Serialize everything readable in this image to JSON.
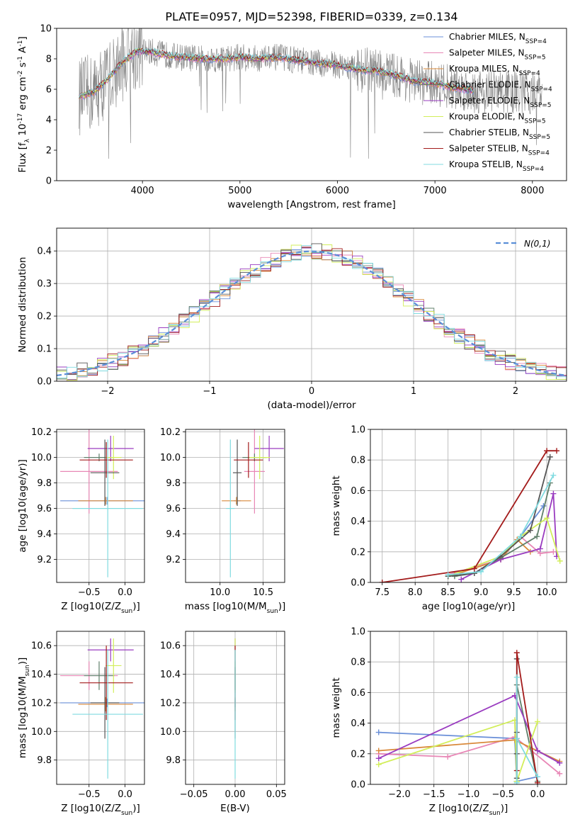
{
  "figure": {
    "title": "PLATE=0957, MJD=52398, FIBERID=0339, z=0.134"
  },
  "colors": {
    "series": [
      "#6a8fd8",
      "#e887b6",
      "#d9893a",
      "#5f7f6a",
      "#9a3cc0",
      "#d2ee5a",
      "#555555",
      "#a31b1b",
      "#80dbe0"
    ],
    "data": "#808080",
    "gauss": "#5b8fd8",
    "grid": "#b0b0b0"
  },
  "series_names": [
    "Chabrier MILES, N_SSP=4",
    "Salpeter MILES, N_SSP=5",
    "Kroupa MILES, N_SSP=4",
    "Chabrier ELODIE, N_SSP=4",
    "Salpeter ELODIE, N_SSP=5",
    "Kroupa ELODIE, N_SSP=5",
    "Chabrier STELIB, N_SSP=5",
    "Salpeter STELIB, N_SSP=4",
    "Kroupa STELIB, N_SSP=4"
  ],
  "chart_data": [
    {
      "id": "spectrum",
      "type": "line",
      "xlabel": "wavelength [Angstrom, rest frame]",
      "ylabel": "Flux [f_λ 10^-17 erg cm^-2 s^-1 A^-1]",
      "xlim": [
        3120,
        8350
      ],
      "ylim": [
        0,
        10
      ],
      "xticks": [
        4000,
        5000,
        6000,
        7000,
        8000
      ],
      "yticks": [
        0,
        2,
        4,
        6,
        8,
        10
      ],
      "grid": false,
      "legend": "right",
      "continuum": {
        "x": [
          3350,
          3500,
          3650,
          3800,
          3950,
          4050,
          4200,
          4400,
          4600,
          4800,
          5000,
          5200,
          5400,
          5600,
          5800,
          6000,
          6200,
          6400,
          6600,
          6800,
          7000,
          7200,
          7400
        ],
        "y": [
          5.5,
          5.8,
          6.7,
          7.8,
          8.5,
          8.5,
          8.3,
          8.1,
          8.0,
          8.0,
          8.1,
          8.0,
          8.1,
          7.9,
          7.7,
          7.6,
          7.3,
          7.2,
          6.9,
          6.5,
          6.4,
          6.1,
          5.9
        ]
      },
      "data_xrange": [
        3350,
        8100
      ],
      "model_xrange": [
        3350,
        7400
      ]
    },
    {
      "id": "residual-hist",
      "type": "histogram",
      "xlabel": "(data-model)/error",
      "ylabel": "Normed distribution",
      "xlim": [
        -2.5,
        2.5
      ],
      "ylim": [
        0,
        0.47
      ],
      "xticks": [
        -2,
        -1,
        0,
        1,
        2
      ],
      "xticklabels": [
        "−2",
        "−1",
        "0",
        "1",
        "2"
      ],
      "yticks": [
        0,
        0.1,
        0.2,
        0.3,
        0.4
      ],
      "yticklabels": [
        "0.0",
        "0.1",
        "0.2",
        "0.3",
        "0.4"
      ],
      "grid": true,
      "legend": "top-right",
      "gauss_label": "N(0,1)",
      "bin_width": 0.1
    },
    {
      "id": "age-vs-Z",
      "type": "scatter",
      "xlabel": "Z [log10(Z/Z_sun)]",
      "ylabel": "age [log10(age/yr)]",
      "xlim": [
        -0.95,
        0.27
      ],
      "ylim": [
        9.02,
        10.22
      ],
      "xticks": [
        -0.5,
        0.0
      ],
      "xticklabels": [
        "−0.5",
        "0.0"
      ],
      "yticks": [
        9.2,
        9.4,
        9.6,
        9.8,
        10.0,
        10.2
      ],
      "yticklabels": [
        "9.2",
        "9.4",
        "9.6",
        "9.8",
        "10.0",
        "10.2"
      ],
      "grid": true,
      "points": [
        {
          "x": -0.25,
          "xerr": 0.65,
          "y": 9.66,
          "yerr": 0.03
        },
        {
          "x": -0.5,
          "xerr": 0.4,
          "y": 9.89,
          "yerr": 0.33
        },
        {
          "x": -0.27,
          "xerr": 0.38,
          "y": 9.66,
          "yerr": 0.03
        },
        {
          "x": -0.36,
          "xerr": 0.21,
          "y": 10.0,
          "yerr": 0.03
        },
        {
          "x": -0.2,
          "xerr": 0.32,
          "y": 10.07,
          "yerr": 0.1
        },
        {
          "x": -0.16,
          "xerr": 0.11,
          "y": 10.0,
          "yerr": 0.17
        },
        {
          "x": -0.28,
          "xerr": 0.2,
          "y": 9.88,
          "yerr": 0.26
        },
        {
          "x": -0.26,
          "xerr": 0.37,
          "y": 9.98,
          "yerr": 0.14
        },
        {
          "x": -0.24,
          "xerr": 0.49,
          "y": 9.6,
          "yerr": 0.54
        }
      ]
    },
    {
      "id": "age-vs-mass",
      "type": "scatter",
      "xlabel": "mass [log10(M/M_sun)]",
      "ylabel": "",
      "xlim": [
        9.6,
        10.75
      ],
      "ylim": [
        9.02,
        10.22
      ],
      "xticks": [
        10.0,
        10.5
      ],
      "xticklabels": [
        "10.0",
        "10.5"
      ],
      "yticks": [
        9.2,
        9.4,
        9.6,
        9.8,
        10.0,
        10.2
      ],
      "yticklabels": [
        "9.2",
        "9.4",
        "9.6",
        "9.8",
        "10.0",
        "10.2"
      ],
      "grid": true,
      "points": [
        {
          "x": 10.2,
          "xerr": 0.04,
          "y": 9.66,
          "yerr": 0.03
        },
        {
          "x": 10.4,
          "xerr": 0.12,
          "y": 9.89,
          "yerr": 0.33
        },
        {
          "x": 10.19,
          "xerr": 0.17,
          "y": 9.66,
          "yerr": 0.03
        },
        {
          "x": 10.4,
          "xerr": 0.14,
          "y": 10.0,
          "yerr": 0.03
        },
        {
          "x": 10.57,
          "xerr": 0.17,
          "y": 10.07,
          "yerr": 0.1
        },
        {
          "x": 10.46,
          "xerr": 0.12,
          "y": 10.0,
          "yerr": 0.17
        },
        {
          "x": 10.2,
          "xerr": 0.05,
          "y": 9.88,
          "yerr": 0.26
        },
        {
          "x": 10.33,
          "xerr": 0.17,
          "y": 9.98,
          "yerr": 0.14
        },
        {
          "x": 10.12,
          "xerr": 0.05,
          "y": 9.6,
          "yerr": 0.54
        }
      ]
    },
    {
      "id": "massweight-vs-age",
      "type": "line",
      "xlabel": "age [log10(age/yr)]",
      "ylabel": "mass weight",
      "xlim": [
        7.32,
        10.3
      ],
      "ylim": [
        0,
        1
      ],
      "xticks": [
        7.5,
        8.0,
        8.5,
        9.0,
        9.5,
        10.0
      ],
      "xticklabels": [
        "7.5",
        "8.0",
        "8.5",
        "9.0",
        "9.5",
        "10.0"
      ],
      "yticks": [
        0,
        0.2,
        0.4,
        0.6,
        0.8,
        1.0
      ],
      "yticklabels": [
        "0.0",
        "0.2",
        "0.4",
        "0.6",
        "0.8",
        "1.0"
      ],
      "grid": true,
      "series_x": [
        [
          8.5,
          9.3,
          9.6,
          9.95
        ],
        [
          8.5,
          9.3,
          9.6,
          9.9,
          10.1
        ],
        [
          8.6,
          9.3,
          9.55,
          9.75
        ],
        [
          8.6,
          8.9,
          9.3,
          9.85,
          10.05
        ],
        [
          8.7,
          9.3,
          9.9,
          10.1,
          10.15
        ],
        [
          8.5,
          9.3,
          9.6,
          10.0,
          10.2
        ],
        [
          8.5,
          8.9,
          9.3,
          9.75,
          10.05
        ],
        [
          7.5,
          8.9,
          10.0,
          10.15
        ],
        [
          8.5,
          9.0,
          9.6,
          10.1
        ]
      ],
      "series_y": [
        [
          0.05,
          0.15,
          0.3,
          0.5
        ],
        [
          0.05,
          0.15,
          0.3,
          0.19,
          0.2
        ],
        [
          0.05,
          0.15,
          0.28,
          0.2
        ],
        [
          0.04,
          0.06,
          0.16,
          0.3,
          0.65
        ],
        [
          0.02,
          0.15,
          0.22,
          0.58,
          0.17
        ],
        [
          0.04,
          0.17,
          0.3,
          0.42,
          0.14
        ],
        [
          0.04,
          0.06,
          0.17,
          0.34,
          0.82
        ],
        [
          0.0,
          0.09,
          0.86,
          0.86
        ],
        [
          0.05,
          0.07,
          0.3,
          0.7
        ]
      ]
    },
    {
      "id": "mass-vs-Z",
      "type": "scatter",
      "xlabel": "Z [log10(Z/Z_sun)]",
      "ylabel": "mass [log10(M/M_sun)]",
      "xlim": [
        -0.95,
        0.27
      ],
      "ylim": [
        9.63,
        10.7
      ],
      "xticks": [
        -0.5,
        0.0
      ],
      "xticklabels": [
        "−0.5",
        "0.0"
      ],
      "yticks": [
        9.8,
        10.0,
        10.2,
        10.4,
        10.6
      ],
      "yticklabels": [
        "9.8",
        "10.0",
        "10.2",
        "10.4",
        "10.6"
      ],
      "grid": true,
      "points": [
        {
          "x": -0.25,
          "xerr": 0.65,
          "y": 10.2,
          "yerr": 0.03
        },
        {
          "x": -0.5,
          "xerr": 0.4,
          "y": 10.39,
          "yerr": 0.1
        },
        {
          "x": -0.27,
          "xerr": 0.38,
          "y": 10.19,
          "yerr": 0.05
        },
        {
          "x": -0.36,
          "xerr": 0.21,
          "y": 10.39,
          "yerr": 0.1
        },
        {
          "x": -0.2,
          "xerr": 0.32,
          "y": 10.57,
          "yerr": 0.08
        },
        {
          "x": -0.16,
          "xerr": 0.11,
          "y": 10.46,
          "yerr": 0.19
        },
        {
          "x": -0.28,
          "xerr": 0.2,
          "y": 10.2,
          "yerr": 0.25
        },
        {
          "x": -0.26,
          "xerr": 0.37,
          "y": 10.34,
          "yerr": 0.26
        },
        {
          "x": -0.24,
          "xerr": 0.49,
          "y": 10.12,
          "yerr": 0.45
        }
      ]
    },
    {
      "id": "mass-vs-ebv",
      "type": "scatter",
      "xlabel": "E(B-V)",
      "ylabel": "",
      "xlim": [
        -0.06,
        0.06
      ],
      "ylim": [
        9.63,
        10.7
      ],
      "xticks": [
        -0.05,
        0.0,
        0.05
      ],
      "xticklabels": [
        "−0.05",
        "0.00",
        "0.05"
      ],
      "yticks": [
        9.8,
        10.0,
        10.2,
        10.4,
        10.6
      ],
      "yticklabels": [
        "9.8",
        "10.0",
        "10.2",
        "10.4",
        "10.6"
      ],
      "grid": true,
      "points": [
        {
          "x": 0,
          "xerr": 0,
          "y": 10.2,
          "yerr": 0.03
        },
        {
          "x": 0,
          "xerr": 0,
          "y": 10.39,
          "yerr": 0.1
        },
        {
          "x": 0,
          "xerr": 0,
          "y": 10.19,
          "yerr": 0.05
        },
        {
          "x": 0,
          "xerr": 0,
          "y": 10.39,
          "yerr": 0.1
        },
        {
          "x": 0,
          "xerr": 0,
          "y": 10.57,
          "yerr": 0.08
        },
        {
          "x": 0,
          "xerr": 0,
          "y": 10.46,
          "yerr": 0.19
        },
        {
          "x": 0,
          "xerr": 0,
          "y": 10.2,
          "yerr": 0.25
        },
        {
          "x": 0,
          "xerr": 0,
          "y": 10.34,
          "yerr": 0.26
        },
        {
          "x": 0,
          "xerr": 0,
          "y": 10.12,
          "yerr": 0.45
        }
      ]
    },
    {
      "id": "massweight-vs-Z",
      "type": "line",
      "xlabel": "Z [log10(Z/Z_sun)]",
      "ylabel": "mass weight",
      "xlim": [
        -2.42,
        0.42
      ],
      "ylim": [
        0,
        1
      ],
      "xticks": [
        -2.0,
        -1.5,
        -1.0,
        -0.5,
        0.0
      ],
      "xticklabels": [
        "−2.0",
        "−1.5",
        "−1.0",
        "−0.5",
        "0.0"
      ],
      "yticks": [
        0,
        0.2,
        0.4,
        0.6,
        0.8,
        1.0
      ],
      "yticklabels": [
        "0.0",
        "0.2",
        "0.4",
        "0.6",
        "0.8",
        "1.0"
      ],
      "grid": true,
      "series_x": [
        [
          -2.3,
          -0.33,
          -0.3,
          0.0
        ],
        [
          -2.3,
          -1.3,
          -0.33,
          0.32
        ],
        [
          -2.3,
          -0.33,
          0.32
        ],
        [
          -0.3,
          -0.3,
          -0.3,
          -0.3,
          0.0
        ],
        [
          -2.3,
          -0.33,
          0.0,
          0.32
        ],
        [
          -2.3,
          -0.33,
          -0.3,
          0.0
        ],
        [
          -0.3,
          -0.3,
          -0.3,
          -0.3
        ],
        [
          -0.3,
          -0.3,
          0.0
        ],
        [
          -0.3,
          -0.3,
          -0.3,
          0.0
        ]
      ],
      "series_y": [
        [
          0.34,
          0.3,
          0.02,
          0.05
        ],
        [
          0.2,
          0.18,
          0.31,
          0.07
        ],
        [
          0.22,
          0.29,
          0.15
        ],
        [
          0.02,
          0.02,
          0.3,
          0.65,
          0.02
        ],
        [
          0.17,
          0.58,
          0.22,
          0.14
        ],
        [
          0.13,
          0.42,
          0.02,
          0.41
        ],
        [
          0.04,
          0.34,
          0.82,
          0.2
        ],
        [
          0.09,
          0.86,
          0.01
        ],
        [
          0.01,
          0.7,
          0.3,
          0.05
        ]
      ]
    }
  ]
}
